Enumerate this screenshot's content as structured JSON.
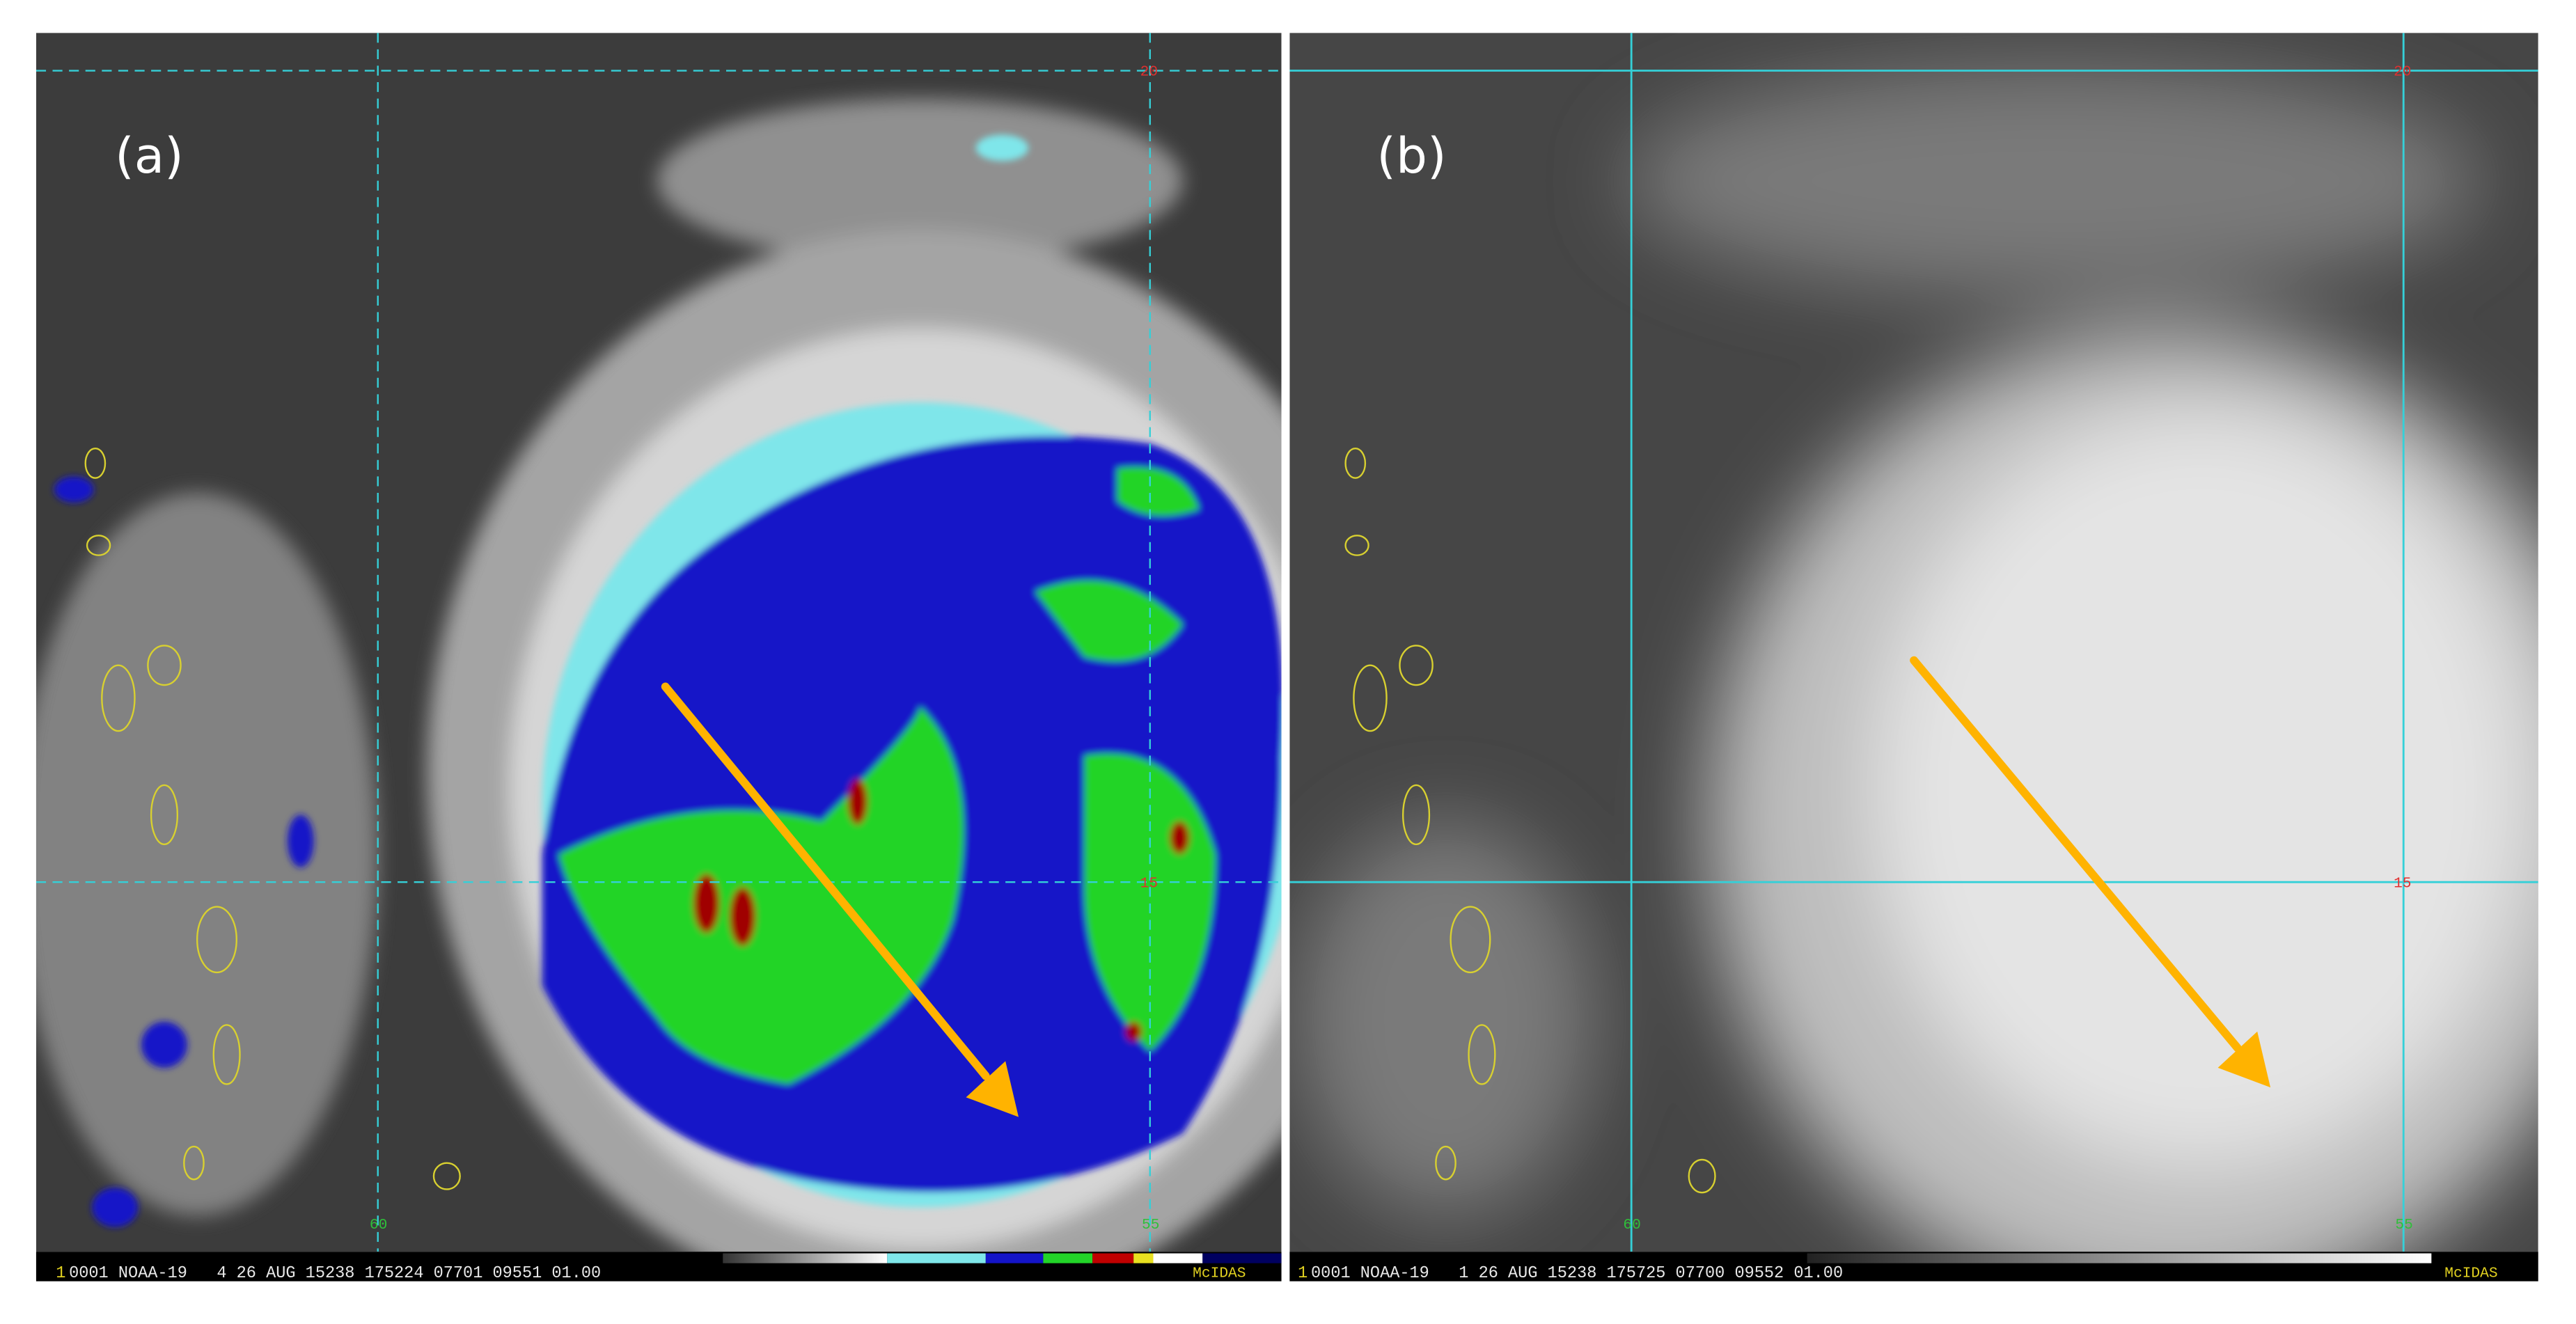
{
  "panels": [
    {
      "label": "(a)",
      "lat_labels": [
        "20",
        "15"
      ],
      "lon_labels": [
        "60",
        "55"
      ],
      "status": {
        "frame": "1",
        "text": "0001 NOAA-19   4 26 AUG 15238 175224 07701 09551 01.00",
        "brand": "McIDAS"
      }
    },
    {
      "label": "(b)",
      "lat_labels": [
        "20",
        "15"
      ],
      "lon_labels": [
        "60",
        "55"
      ],
      "status": {
        "frame": "1",
        "text": "0001 NOAA-19   1 26 AUG 15238 175725 07700 09552 01.00",
        "brand": "McIDAS"
      }
    }
  ]
}
